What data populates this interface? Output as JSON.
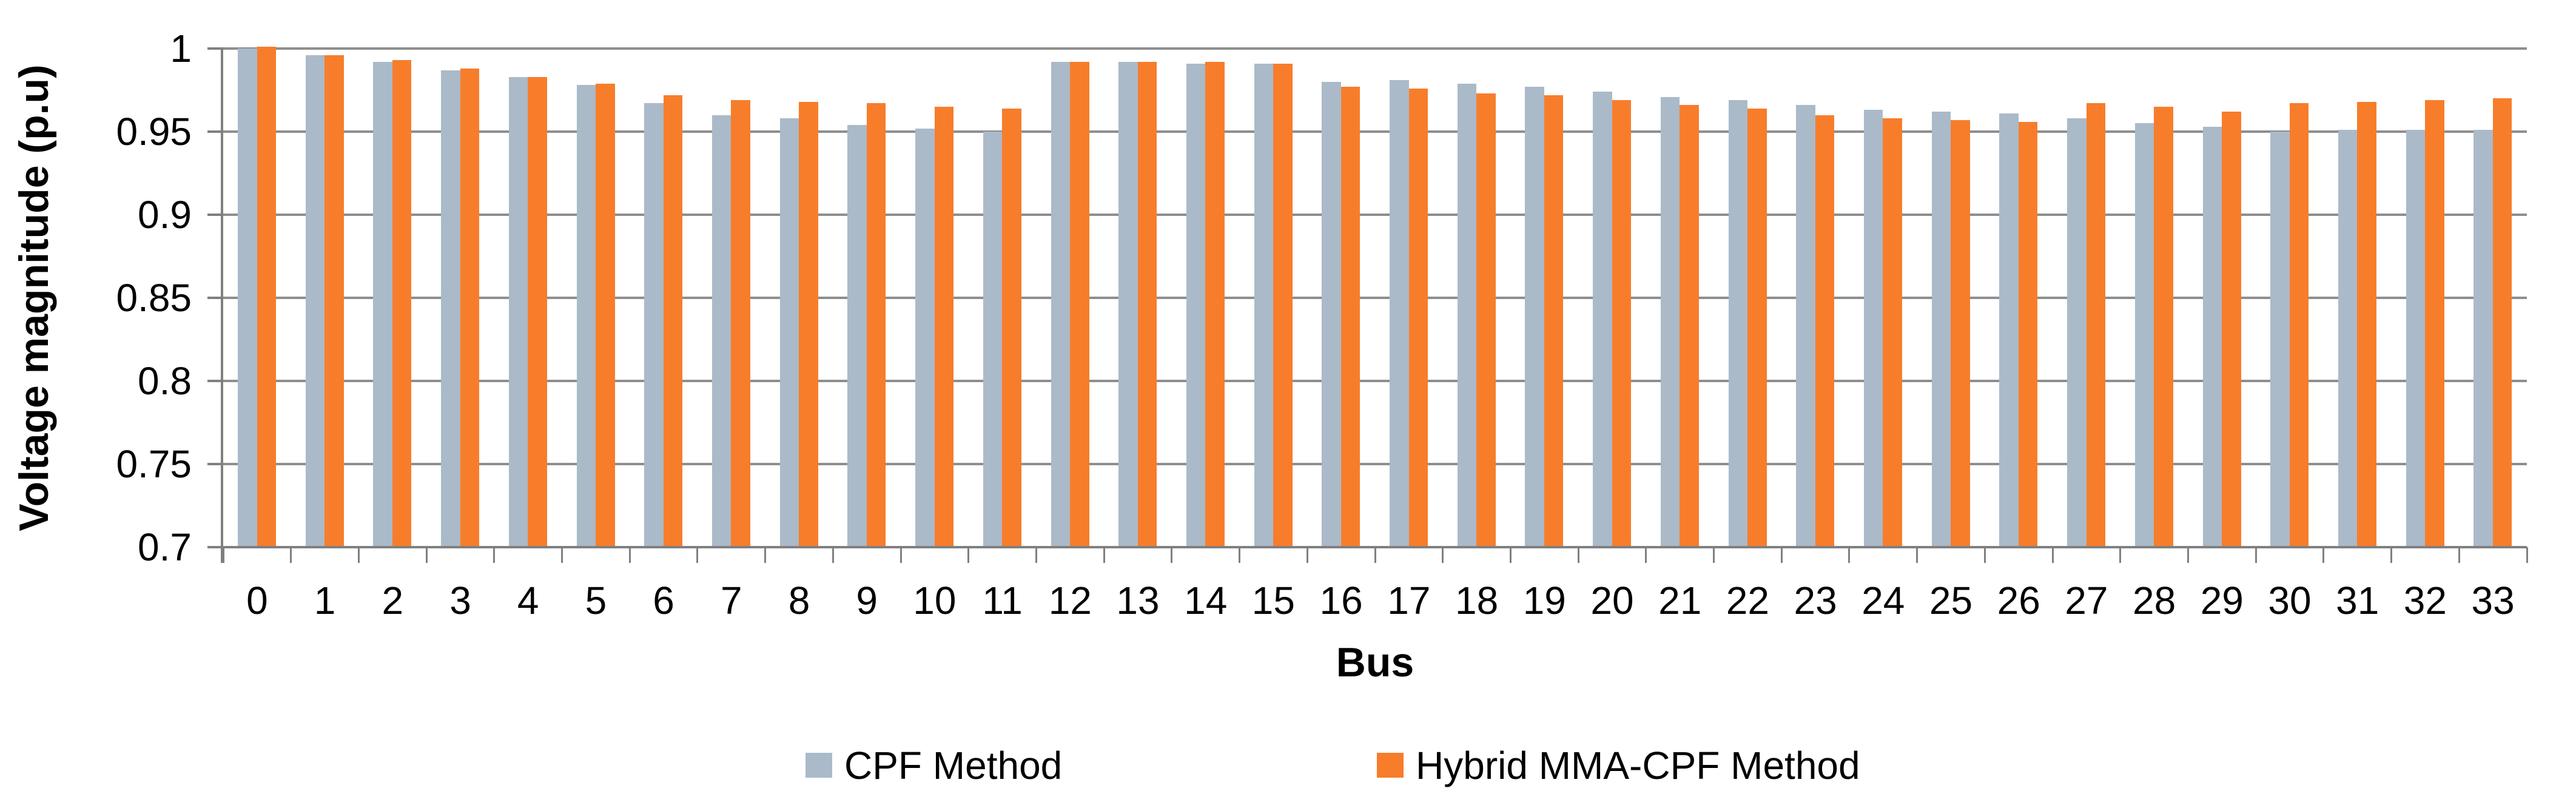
{
  "chart_data": {
    "type": "bar",
    "title": "",
    "xlabel": "Bus",
    "ylabel": "Voltage magnitude (p.u)",
    "categories": [
      "0",
      "1",
      "2",
      "3",
      "4",
      "5",
      "6",
      "7",
      "8",
      "9",
      "10",
      "11",
      "12",
      "13",
      "14",
      "15",
      "16",
      "17",
      "18",
      "19",
      "20",
      "21",
      "22",
      "23",
      "24",
      "25",
      "26",
      "27",
      "28",
      "29",
      "30",
      "31",
      "32",
      "33"
    ],
    "series": [
      {
        "name": "CPF Method",
        "color": "#AABAC9",
        "values": [
          1.0,
          0.996,
          0.992,
          0.987,
          0.983,
          0.978,
          0.967,
          0.96,
          0.958,
          0.954,
          0.952,
          0.95,
          0.992,
          0.992,
          0.991,
          0.991,
          0.98,
          0.981,
          0.979,
          0.977,
          0.974,
          0.971,
          0.969,
          0.966,
          0.963,
          0.962,
          0.961,
          0.958,
          0.955,
          0.953,
          0.95,
          0.951,
          0.951,
          0.951
        ]
      },
      {
        "name": "Hybrid MMA-CPF Method",
        "color": "#F77D2B",
        "values": [
          1.001,
          0.996,
          0.993,
          0.988,
          0.983,
          0.979,
          0.972,
          0.969,
          0.968,
          0.967,
          0.965,
          0.964,
          0.992,
          0.992,
          0.992,
          0.991,
          0.977,
          0.976,
          0.973,
          0.972,
          0.969,
          0.966,
          0.964,
          0.96,
          0.958,
          0.957,
          0.956,
          0.967,
          0.965,
          0.962,
          0.967,
          0.968,
          0.969,
          0.97
        ]
      }
    ],
    "ylim": [
      0.7,
      1.0
    ],
    "yticks": [
      "1",
      "0.95",
      "0.9",
      "0.85",
      "0.8",
      "0.75",
      "0.7"
    ],
    "ytick_values": [
      1.0,
      0.95,
      0.9,
      0.85,
      0.8,
      0.75,
      0.7
    ],
    "grid": "horizontal",
    "legend_position": "bottom"
  },
  "colors": {
    "background": "#FFFFFF",
    "gridline": "#8E8E8E",
    "axis": "#808080",
    "text": "#000000",
    "cpf_bar": "#AABAC9",
    "hybrid_bar": "#F77D2B"
  }
}
